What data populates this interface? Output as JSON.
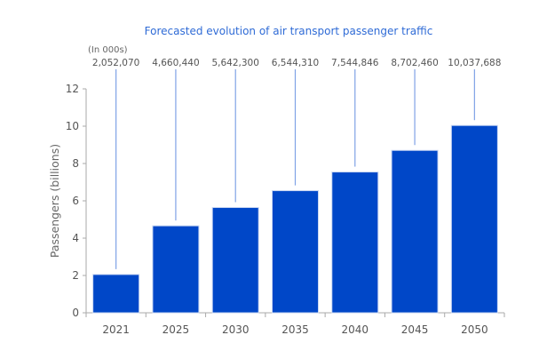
{
  "chart_data": {
    "type": "bar",
    "title": "Forecasted evolution of air transport passenger traffic",
    "unit_note": "(In 000s)",
    "xlabel": "",
    "ylabel": "Passengers (billions)",
    "ylim": [
      0,
      12
    ],
    "yticks": [
      "0",
      "2",
      "4",
      "6",
      "8",
      "10",
      "12"
    ],
    "categories": [
      "2021",
      "2025",
      "2030",
      "2035",
      "2040",
      "2045",
      "2050"
    ],
    "values": [
      2.05207,
      4.66044,
      5.6423,
      6.54431,
      7.544846,
      8.70246,
      10.037688
    ],
    "data_labels": [
      "2,052,070",
      "4,660,440",
      "5,642,300",
      "6,544,310",
      "7,544,846",
      "8,702,460",
      "10,037,688"
    ],
    "grid": false,
    "colors": {
      "bar": "#0047c8",
      "bar_border": "#c9d6f2",
      "title": "#2f6bd6",
      "leader": "#7fa2e6",
      "axis": "#aaaaaa"
    }
  }
}
